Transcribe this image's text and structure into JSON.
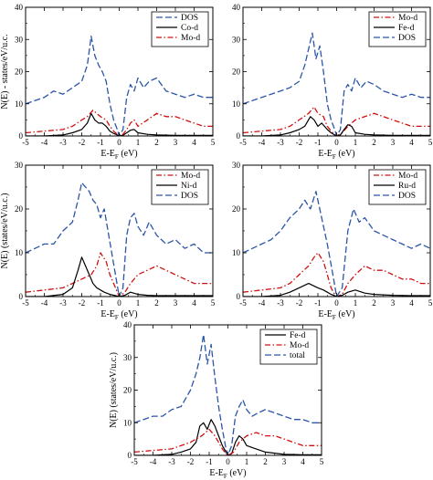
{
  "colors": {
    "dos": "#2b55a8",
    "metal": "#000000",
    "mo": "#d01010"
  },
  "chart_data": [
    {
      "type": "line",
      "xlabel": "E-E_F (eV)",
      "ylabel": "N(E) - states/eV/u.c.",
      "xlim": [
        -5,
        5
      ],
      "ylim": [
        0,
        40
      ],
      "xticks": [
        "-5",
        "-4",
        "-3",
        "-2",
        "-1",
        "0",
        "1",
        "2",
        "3",
        "4",
        "5"
      ],
      "yticks": [
        "0",
        "10",
        "20",
        "30",
        "40"
      ],
      "legend": {
        "position": "top-right",
        "entries": [
          "DOS",
          "Co-d",
          "Mo-d"
        ]
      },
      "series": [
        {
          "name": "DOS",
          "style": "dashed",
          "color_key": "dos",
          "x": [
            -5,
            -4.5,
            -4,
            -3.5,
            -3,
            -2.5,
            -2,
            -1.7,
            -1.5,
            -1.3,
            -1.1,
            -0.9,
            -0.7,
            -0.5,
            -0.3,
            -0.1,
            0,
            0.2,
            0.4,
            0.6,
            0.8,
            1,
            1.3,
            1.6,
            2,
            2.5,
            3,
            3.5,
            4,
            4.5,
            5
          ],
          "y": [
            10,
            11,
            12,
            14,
            13,
            15,
            17,
            22,
            31,
            25,
            22,
            20,
            17,
            10,
            5,
            2,
            0,
            2,
            12,
            16,
            14,
            18,
            15,
            17,
            18,
            14,
            13,
            12,
            13,
            12,
            12
          ]
        },
        {
          "name": "Co-d",
          "style": "solid",
          "color_key": "metal",
          "x": [
            -5,
            -4,
            -3,
            -2.5,
            -2,
            -1.7,
            -1.5,
            -1.3,
            -1.1,
            -0.9,
            -0.7,
            -0.5,
            -0.3,
            -0.1,
            0,
            0.2,
            0.4,
            0.6,
            0.8,
            1,
            1.5,
            2,
            3,
            4,
            5
          ],
          "y": [
            0,
            0,
            0.3,
            1,
            2,
            4,
            7,
            5,
            4,
            4,
            3,
            1.5,
            0.8,
            0.3,
            0,
            0.2,
            1,
            1.8,
            2,
            1,
            0.5,
            0.3,
            0.2,
            0.2,
            0.2
          ]
        },
        {
          "name": "Mo-d",
          "style": "dashdot",
          "color_key": "mo",
          "x": [
            -5,
            -4,
            -3,
            -2.5,
            -2,
            -1.7,
            -1.4,
            -1.2,
            -1,
            -0.7,
            -0.5,
            -0.3,
            -0.1,
            0,
            0.2,
            0.4,
            0.6,
            0.8,
            1,
            1.5,
            2,
            2.5,
            3,
            3.5,
            4,
            4.5,
            5
          ],
          "y": [
            1,
            1.5,
            2,
            3,
            5,
            6,
            8,
            7,
            6,
            5,
            3,
            1.5,
            0.5,
            0,
            0.5,
            2,
            4,
            5,
            3,
            5,
            7,
            6,
            6,
            5,
            4,
            3,
            3
          ]
        }
      ]
    },
    {
      "type": "line",
      "xlabel": "E-E_F (eV)",
      "ylabel": "",
      "xlim": [
        -5,
        5
      ],
      "ylim": [
        0,
        40
      ],
      "xticks": [
        "-5",
        "-4",
        "-3",
        "-2",
        "-1",
        "0",
        "1",
        "2",
        "3",
        "4",
        "5"
      ],
      "yticks": [
        "0",
        "10",
        "20",
        "30",
        "40"
      ],
      "legend": {
        "position": "top-right",
        "entries": [
          "Mo-d",
          "Fe-d",
          "DOS"
        ]
      },
      "series": [
        {
          "name": "Mo-d",
          "style": "dashdot",
          "color_key": "mo",
          "x": [
            -5,
            -4,
            -3,
            -2.5,
            -2,
            -1.5,
            -1.2,
            -1,
            -0.7,
            -0.5,
            -0.3,
            -0.1,
            0,
            0.3,
            0.6,
            1,
            1.5,
            2,
            2.5,
            3,
            3.5,
            4,
            4.5,
            5
          ],
          "y": [
            1,
            1.5,
            2,
            3,
            5,
            7,
            9,
            7,
            6,
            3,
            1.5,
            0.5,
            0,
            1,
            3,
            5,
            6,
            7,
            6,
            5,
            4,
            3,
            3,
            3
          ]
        },
        {
          "name": "Fe-d",
          "style": "solid",
          "color_key": "metal",
          "x": [
            -5,
            -4,
            -3,
            -2.5,
            -2,
            -1.7,
            -1.4,
            -1.2,
            -1,
            -0.8,
            -0.5,
            -0.3,
            -0.1,
            0,
            0.2,
            0.4,
            0.6,
            0.8,
            1,
            1.5,
            2,
            3,
            4,
            5
          ],
          "y": [
            0,
            0,
            0.3,
            1,
            2,
            3,
            6,
            5,
            3,
            4,
            2,
            1,
            0.3,
            0,
            0.3,
            2,
            3.5,
            3,
            1,
            0.5,
            0.3,
            0.2,
            0.2,
            0.2
          ]
        },
        {
          "name": "DOS",
          "style": "dashed",
          "color_key": "dos",
          "x": [
            -5,
            -4.5,
            -4,
            -3.5,
            -3,
            -2.5,
            -2,
            -1.7,
            -1.5,
            -1.3,
            -1.1,
            -0.9,
            -0.7,
            -0.5,
            -0.3,
            -0.1,
            0,
            0.2,
            0.4,
            0.6,
            0.8,
            1,
            1.3,
            1.6,
            2,
            2.5,
            3,
            3.5,
            4,
            4.5,
            5
          ],
          "y": [
            10,
            11,
            12,
            13,
            14,
            15,
            17,
            22,
            27,
            32,
            24,
            28,
            20,
            10,
            5,
            2,
            0,
            2,
            14,
            16,
            14,
            18,
            15,
            17,
            16,
            14,
            13,
            12,
            13,
            12,
            12
          ]
        }
      ]
    },
    {
      "type": "line",
      "xlabel": "E-E_F (eV)",
      "ylabel": "N(E) (states/eV/u.c.)",
      "xlim": [
        -5,
        5
      ],
      "ylim": [
        0,
        30
      ],
      "xticks": [
        "-5",
        "-4",
        "-3",
        "-2",
        "-1",
        "0",
        "1",
        "2",
        "3",
        "4",
        "5"
      ],
      "yticks": [
        "0",
        "10",
        "20",
        "30"
      ],
      "legend": {
        "position": "top-right",
        "entries": [
          "Mo-d",
          "Ni-d",
          "DOS"
        ]
      },
      "series": [
        {
          "name": "Mo-d",
          "style": "dashdot",
          "color_key": "mo",
          "x": [
            -5,
            -4,
            -3,
            -2.5,
            -2,
            -1.5,
            -1.2,
            -1,
            -0.7,
            -0.5,
            -0.3,
            -0.1,
            0,
            0.3,
            0.6,
            1,
            1.5,
            2,
            2.5,
            3,
            3.5,
            4,
            4.5,
            5
          ],
          "y": [
            1,
            1.5,
            2,
            3,
            4,
            5,
            7,
            10,
            8,
            5,
            3,
            1,
            0,
            1,
            3,
            5,
            6,
            7,
            6,
            5,
            4,
            3,
            3,
            3
          ]
        },
        {
          "name": "Ni-d",
          "style": "solid",
          "color_key": "metal",
          "x": [
            -5,
            -4,
            -3,
            -2.5,
            -2.2,
            -2,
            -1.8,
            -1.6,
            -1.4,
            -1.2,
            -1,
            -0.8,
            -0.5,
            -0.2,
            0,
            0.3,
            0.6,
            1,
            1.5,
            2,
            3,
            4,
            5
          ],
          "y": [
            0,
            0,
            0.5,
            2,
            6,
            9,
            7,
            5,
            3,
            2,
            1.5,
            1,
            0.5,
            0.2,
            0,
            0.3,
            1,
            0.5,
            0.3,
            0.2,
            0.2,
            0.2,
            0.2
          ]
        },
        {
          "name": "DOS",
          "style": "dashed",
          "color_key": "dos",
          "x": [
            -5,
            -4.5,
            -4,
            -3.5,
            -3,
            -2.5,
            -2.2,
            -2,
            -1.8,
            -1.6,
            -1.4,
            -1.2,
            -1,
            -0.8,
            -0.6,
            -0.4,
            -0.2,
            0,
            0.2,
            0.4,
            0.6,
            0.8,
            1,
            1.3,
            1.6,
            2,
            2.5,
            3,
            3.5,
            4,
            4.5,
            5
          ],
          "y": [
            10,
            11,
            12,
            12,
            15,
            17,
            22,
            26,
            25,
            24,
            22,
            21,
            18,
            20,
            15,
            10,
            5,
            0,
            2,
            14,
            18,
            19,
            16,
            14,
            17,
            14,
            12,
            13,
            11,
            12,
            10,
            10
          ]
        }
      ]
    },
    {
      "type": "line",
      "xlabel": "E-E_F (eV)",
      "ylabel": "",
      "xlim": [
        -5,
        5
      ],
      "ylim": [
        0,
        30
      ],
      "xticks": [
        "-5",
        "-4",
        "-3",
        "-2",
        "-1",
        "0",
        "1",
        "2",
        "3",
        "4",
        "5"
      ],
      "yticks": [
        "0",
        "10",
        "20",
        "30"
      ],
      "legend": {
        "position": "top-right",
        "entries": [
          "Mo-d",
          "Ru-d",
          "DOS"
        ]
      },
      "series": [
        {
          "name": "Mo-d",
          "style": "dashdot",
          "color_key": "mo",
          "x": [
            -5,
            -4,
            -3,
            -2.5,
            -2,
            -1.5,
            -1.2,
            -1,
            -0.7,
            -0.5,
            -0.3,
            -0.1,
            0,
            0.3,
            0.6,
            1,
            1.5,
            2,
            2.5,
            3,
            3.5,
            4,
            4.5,
            5
          ],
          "y": [
            1,
            1.5,
            2,
            3,
            5,
            7,
            9,
            10,
            8,
            5,
            2,
            0.5,
            0,
            0.5,
            3,
            5,
            7,
            6,
            6,
            5,
            4,
            4,
            3,
            3
          ]
        },
        {
          "name": "Ru-d",
          "style": "solid",
          "color_key": "metal",
          "x": [
            -5,
            -4,
            -3,
            -2.5,
            -2,
            -1.5,
            -1,
            -0.7,
            -0.5,
            -0.3,
            -0.1,
            0,
            0.3,
            0.6,
            1,
            1.5,
            2,
            3,
            4,
            5
          ],
          "y": [
            0,
            0,
            0.3,
            1,
            2,
            3,
            2,
            1.5,
            1,
            0.5,
            0.2,
            0,
            0.3,
            1,
            1.5,
            0.8,
            0.5,
            0.3,
            0.2,
            0.2
          ]
        },
        {
          "name": "DOS",
          "style": "dashed",
          "color_key": "dos",
          "x": [
            -5,
            -4.5,
            -4,
            -3.5,
            -3,
            -2.5,
            -2,
            -1.7,
            -1.4,
            -1.1,
            -0.8,
            -0.5,
            -0.2,
            0,
            0.3,
            0.6,
            0.9,
            1.2,
            1.5,
            2,
            2.5,
            3,
            3.5,
            4,
            4.5,
            5
          ],
          "y": [
            10,
            11,
            12,
            13,
            15,
            18,
            20,
            22,
            20,
            24,
            18,
            12,
            5,
            0,
            2,
            15,
            20,
            17,
            18,
            15,
            14,
            13,
            12,
            11,
            12,
            11
          ]
        }
      ]
    },
    {
      "type": "line",
      "xlabel": "E-E_F (eV)",
      "ylabel": "N(E) (states/eV/u.c.)",
      "xlim": [
        -5,
        5
      ],
      "ylim": [
        0,
        40
      ],
      "xticks": [
        "-5",
        "-4",
        "-3",
        "-2",
        "-1",
        "0",
        "1",
        "2",
        "3",
        "4",
        "5"
      ],
      "yticks": [
        "0",
        "10",
        "20",
        "30",
        "40"
      ],
      "legend": {
        "position": "top-right",
        "entries": [
          "Fe-d",
          "Mo-d",
          "total"
        ]
      },
      "series": [
        {
          "name": "Fe-d",
          "style": "solid",
          "color_key": "metal",
          "x": [
            -5,
            -4,
            -3,
            -2.5,
            -2,
            -1.7,
            -1.5,
            -1.3,
            -1.1,
            -0.9,
            -0.7,
            -0.5,
            -0.3,
            -0.1,
            0,
            0.2,
            0.4,
            0.6,
            0.8,
            1,
            1.5,
            2,
            3,
            4,
            5
          ],
          "y": [
            0,
            0,
            0.3,
            1,
            2,
            4,
            9,
            10,
            8,
            11,
            9,
            6,
            3,
            1,
            0,
            0.5,
            4,
            6,
            5,
            3,
            2,
            1,
            0.3,
            0.2,
            0.2
          ]
        },
        {
          "name": "Mo-d",
          "style": "dashdot",
          "color_key": "mo",
          "x": [
            -5,
            -4,
            -3,
            -2.5,
            -2,
            -1.7,
            -1.4,
            -1.2,
            -1,
            -0.7,
            -0.5,
            -0.3,
            -0.1,
            0,
            0.3,
            0.6,
            1,
            1.5,
            2,
            2.5,
            3,
            3.5,
            4,
            4.5,
            5
          ],
          "y": [
            1,
            1.5,
            2,
            3,
            4,
            5,
            6,
            7,
            8,
            6,
            4,
            2,
            0.5,
            0,
            1,
            4,
            6,
            7,
            6,
            6,
            5,
            4,
            3,
            3,
            3
          ]
        },
        {
          "name": "total",
          "style": "dashed",
          "color_key": "dos",
          "x": [
            -5,
            -4.5,
            -4,
            -3.5,
            -3,
            -2.5,
            -2,
            -1.7,
            -1.5,
            -1.3,
            -1.1,
            -0.9,
            -0.7,
            -0.5,
            -0.3,
            -0.1,
            0,
            0.2,
            0.4,
            0.6,
            0.8,
            1,
            1.3,
            1.6,
            2,
            2.5,
            3,
            3.5,
            4,
            4.5,
            5
          ],
          "y": [
            10,
            11,
            12,
            12,
            14,
            15,
            20,
            25,
            30,
            37,
            28,
            34,
            24,
            15,
            8,
            2,
            0,
            3,
            12,
            15,
            17,
            14,
            12,
            13,
            14,
            13,
            12,
            11,
            11,
            10,
            10
          ]
        }
      ]
    }
  ]
}
